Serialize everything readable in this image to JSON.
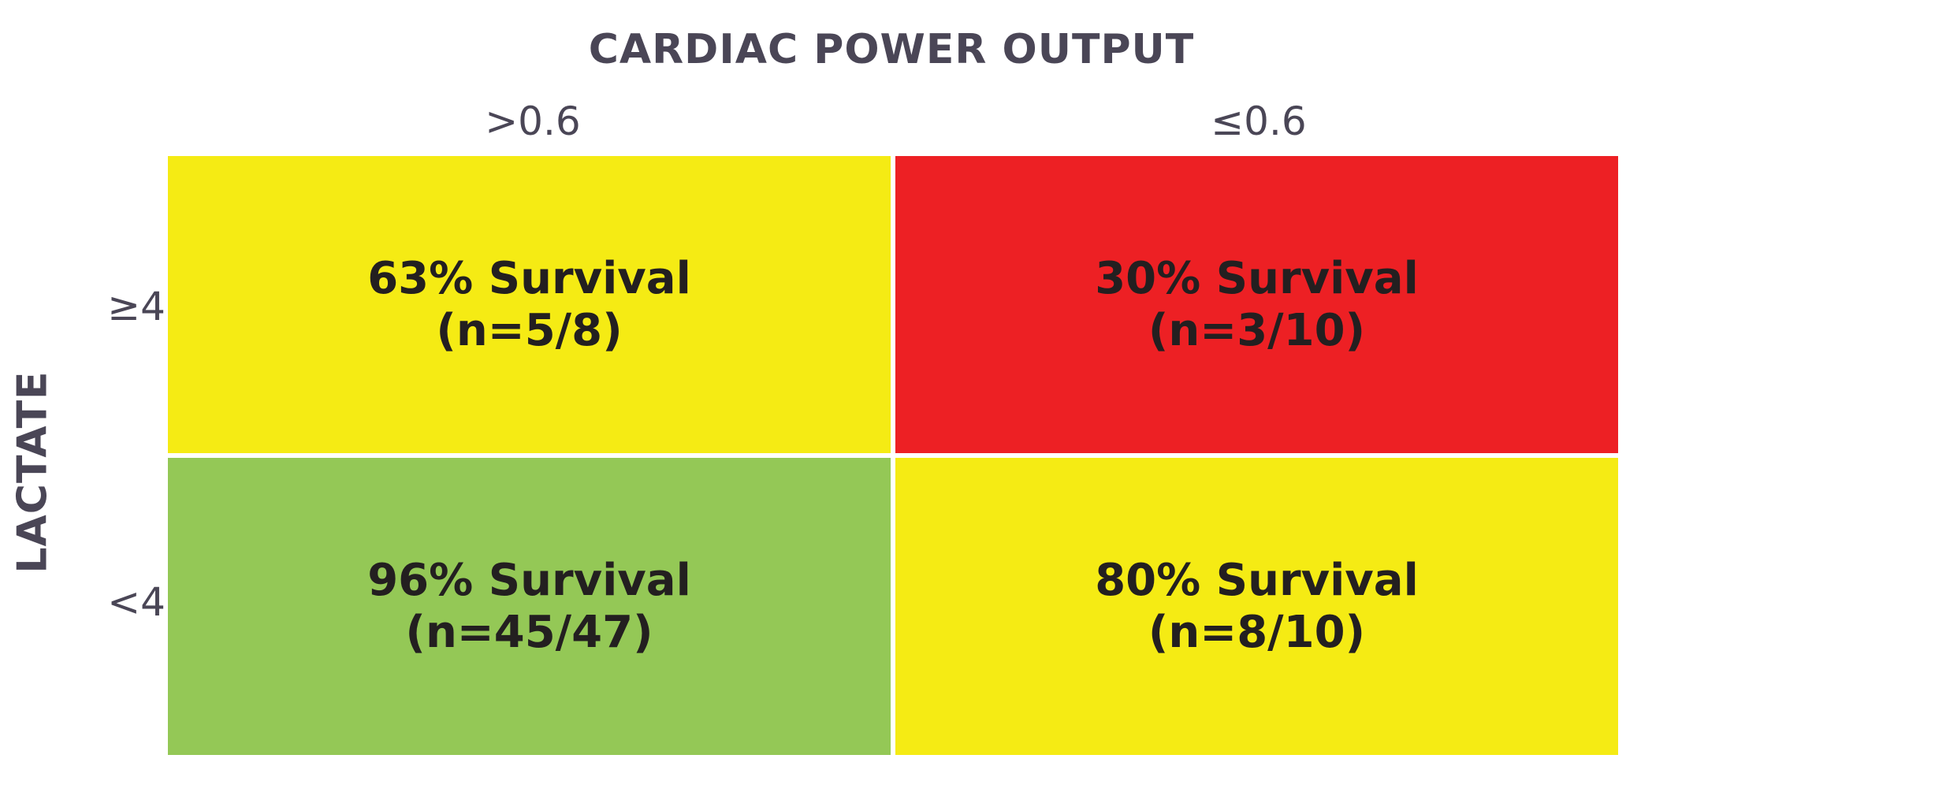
{
  "chart_data": {
    "type": "heatmap",
    "title": "CARDIAC POWER OUTPUT",
    "column_header": "CARDIAC POWER OUTPUT",
    "row_header": "LACTATE",
    "columns": [
      ">0.6",
      "≤0.6"
    ],
    "rows": [
      "≥4",
      "<4"
    ],
    "cells": [
      [
        {
          "survival_pct": 63,
          "survived": 5,
          "total": 8,
          "label": "63% Survival",
          "count_label": "(n=5/8)",
          "color": "#f5eb14"
        },
        {
          "survival_pct": 30,
          "survived": 3,
          "total": 10,
          "label": "30% Survival",
          "count_label": "(n=3/10)",
          "color": "#ed2024"
        }
      ],
      [
        {
          "survival_pct": 96,
          "survived": 45,
          "total": 47,
          "label": "96% Survival",
          "count_label": "(n=45/47)",
          "color": "#94c856"
        },
        {
          "survival_pct": 80,
          "survived": 8,
          "total": 10,
          "label": "80% Survival",
          "count_label": "(n=8/10)",
          "color": "#f5eb14"
        }
      ]
    ]
  }
}
